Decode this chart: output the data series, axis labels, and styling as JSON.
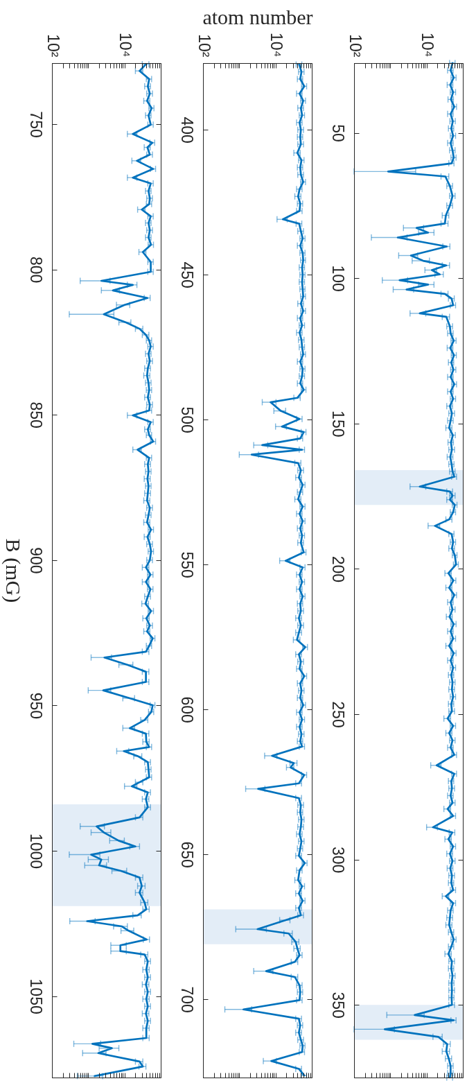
{
  "chart_data": [
    {
      "type": "line",
      "ylabel": "B (mG)",
      "series": [
        {
          "color": "#0072bd",
          "x": [
            39000,
            26000,
            48000,
            44000,
            50000,
            42000,
            56000,
            46000,
            53000,
            17000,
            59000,
            43000,
            50000,
            22000,
            62000,
            17000,
            53000,
            46000,
            50000,
            48000,
            30000,
            53000,
            46000,
            50000,
            46000,
            54000,
            32000,
            53000,
            53000,
            2300,
            17000,
            4800,
            43000,
            10000,
            2700,
            11000,
            26000,
            39000,
            48000,
            53000,
            46000,
            50000,
            44000,
            42000,
            46000,
            48000,
            44000,
            50000,
            48000,
            17000,
            53000,
            44000,
            48000,
            62000,
            23000,
            48000,
            44000,
            46000,
            43000,
            46000,
            44000,
            42000,
            50000,
            46000,
            42000,
            54000,
            43000,
            50000,
            54000,
            50000,
            39000,
            52000,
            39000,
            52000,
            44000,
            38000,
            54000,
            40000,
            50000,
            42000,
            60000,
            48000,
            39000,
            2800,
            12000,
            39000,
            39000,
            2600,
            14000,
            60000,
            55000,
            36000,
            14000,
            39000,
            40000,
            48000,
            9600,
            24000,
            44000,
            46000,
            48000,
            26000,
            16000,
            44000,
            39000,
            44000,
            26000,
            1700,
            2700,
            6900,
            20000,
            1200,
            2300,
            2000,
            8000,
            26000,
            30000,
            26000,
            36000,
            40000,
            23000,
            930,
            8500,
            13000,
            41000,
            7700,
            7700,
            36000,
            44000,
            40000,
            44000,
            39000,
            44000,
            40000,
            44000,
            39000,
            44000,
            40000,
            40000,
            1300,
            4500,
            1900,
            26000,
            32000,
            1500
          ],
          "values": [
            729.4,
            731.7,
            734.5,
            737,
            739.5,
            742,
            744.5,
            747,
            750.2,
            753.4,
            756.4,
            758,
            760.5,
            762.6,
            765.4,
            768.4,
            770.4,
            773,
            775.5,
            777.5,
            779.4,
            781.7,
            784,
            786.5,
            789,
            791.5,
            794,
            797.4,
            800.8,
            803.9,
            805.3,
            807.2,
            809.8,
            812.2,
            815.4,
            818.2,
            820.4,
            822.5,
            824.4,
            826.5,
            829,
            831.5,
            834,
            836.5,
            839,
            841.5,
            844,
            846.5,
            848.5,
            850.2,
            852.5,
            855,
            857,
            859.2,
            862,
            864.8,
            867,
            869.5,
            872,
            874.5,
            877,
            879.5,
            882,
            884.5,
            887,
            889.5,
            892,
            894.5,
            897,
            900,
            902.5,
            905,
            907.5,
            910,
            912.5,
            915,
            917.5,
            920,
            922.5,
            924.5,
            926.9,
            929.5,
            931.5,
            933.5,
            936,
            938.4,
            941.9,
            944.8,
            947.5,
            949.9,
            952.2,
            955,
            957.8,
            959.7,
            962.5,
            964.3,
            965.7,
            967.5,
            969.5,
            972,
            974.7,
            976.4,
            977.8,
            979.9,
            982.2,
            985,
            988.5,
            991.6,
            993.7,
            996.5,
            998.5,
            1001.3,
            1003,
            1005,
            1006.9,
            1009.2,
            1012.1,
            1014.4,
            1017.8,
            1020.1,
            1022.2,
            1024.2,
            1026,
            1027.5,
            1030.5,
            1032.5,
            1034.5,
            1035.7,
            1038,
            1040.9,
            1043.5,
            1046,
            1048.5,
            1051,
            1053.5,
            1056,
            1058.5,
            1061,
            1064.4,
            1066.4,
            1067.9,
            1069.6,
            1072.5,
            1074.2,
            1077.5
          ],
          "xerrors": [
            8000,
            6000,
            8000,
            8000,
            9000,
            8000,
            9000,
            8000,
            9000,
            5000,
            9000,
            8000,
            9000,
            6000,
            10000,
            5000,
            9000,
            8000,
            9000,
            8000,
            7000,
            9000,
            8000,
            9000,
            8000,
            9000,
            7000,
            9000,
            9000,
            1700,
            5000,
            2500,
            8000,
            4000,
            2400,
            4000,
            6000,
            8000,
            8000,
            9000,
            8000,
            9000,
            8000,
            8000,
            8000,
            8000,
            8000,
            9000,
            8000,
            5000,
            9000,
            8000,
            8000,
            10000,
            6000,
            8000,
            8000,
            8000,
            8000,
            8000,
            8000,
            8000,
            9000,
            8000,
            8000,
            9000,
            8000,
            9000,
            9000,
            9000,
            8000,
            9000,
            8000,
            9000,
            8000,
            8000,
            9000,
            8000,
            9000,
            8000,
            9000,
            8000,
            8000,
            1600,
            5000,
            8000,
            8000,
            1600,
            5000,
            9000,
            9000,
            8000,
            5000,
            8000,
            8000,
            8000,
            3500,
            6000,
            8000,
            8000,
            8000,
            6000,
            6000,
            8000,
            8000,
            8000,
            6000,
            1100,
            1500,
            3000,
            6000,
            900,
            1300,
            1200,
            3500,
            6000,
            7000,
            6000,
            8000,
            8000,
            6000,
            620,
            3500,
            5000,
            8000,
            3500,
            3500,
            8000,
            8000,
            8000,
            8000,
            8000,
            8000,
            8000,
            8000,
            8000,
            8000,
            8000,
            8000,
            900,
            2500,
            1200,
            6000,
            7000,
            1000
          ]
        }
      ],
      "xlim": [
        100,
        100000
      ],
      "xticks": [
        {
          "value": 100,
          "label": "10²"
        },
        {
          "value": 200,
          "label": null
        },
        {
          "value": 300,
          "label": null
        },
        {
          "value": 400,
          "label": null
        },
        {
          "value": 500,
          "label": null
        },
        {
          "value": 600,
          "label": null
        },
        {
          "value": 700,
          "label": null
        },
        {
          "value": 800,
          "label": null
        },
        {
          "value": 900,
          "label": null
        },
        {
          "value": 1000,
          "label": null
        },
        {
          "value": 2000,
          "label": null
        },
        {
          "value": 3000,
          "label": null
        },
        {
          "value": 4000,
          "label": null
        },
        {
          "value": 5000,
          "label": null
        },
        {
          "value": 6000,
          "label": null
        },
        {
          "value": 7000,
          "label": null
        },
        {
          "value": 8000,
          "label": null
        },
        {
          "value": 9000,
          "label": null
        },
        {
          "value": 10000,
          "label": "10⁴"
        },
        {
          "value": 20000,
          "label": null
        },
        {
          "value": 30000,
          "label": null
        },
        {
          "value": 40000,
          "label": null
        },
        {
          "value": 50000,
          "label": null
        },
        {
          "value": 60000,
          "label": null
        },
        {
          "value": 70000,
          "label": null
        },
        {
          "value": 80000,
          "label": null
        },
        {
          "value": 90000,
          "label": null
        }
      ],
      "ylim": [
        1078,
        729
      ],
      "yticks": [
        750,
        800,
        850,
        900,
        950,
        1000,
        1050
      ],
      "log": "x",
      "bands": [
        {
          "axis": "y",
          "from": 984,
          "to": 1019,
          "color": "#e3edf7"
        }
      ]
    },
    {
      "type": "line",
      "xlabel": "atom number",
      "series": [
        {
          "color": "#0072bd",
          "x": [
            45000,
            52000,
            48000,
            62000,
            46000,
            58000,
            50000,
            54000,
            46000,
            50000,
            48000,
            50000,
            40000,
            52000,
            48000,
            50000,
            58000,
            46000,
            42000,
            48000,
            46000,
            16000,
            45000,
            50000,
            56000,
            48000,
            56000,
            58000,
            54000,
            56000,
            54000,
            56000,
            58000,
            50000,
            58000,
            48000,
            54000,
            46000,
            52000,
            54000,
            58000,
            48000,
            56000,
            54000,
            48000,
            60000,
            40000,
            7300,
            14000,
            46000,
            15000,
            60000,
            48000,
            4300,
            54000,
            2200,
            42000,
            50000,
            44000,
            56000,
            48000,
            42000,
            56000,
            46000,
            56000,
            48000,
            54000,
            50000,
            60000,
            19000,
            56000,
            46000,
            54000,
            46000,
            56000,
            48000,
            50000,
            44000,
            50000,
            44000,
            39000,
            66000,
            44000,
            50000,
            46000,
            62000,
            48000,
            52000,
            48000,
            58000,
            46000,
            54000,
            46000,
            52000,
            48000,
            54000,
            8000,
            32000,
            26000,
            62000,
            44000,
            3300,
            44000,
            50000,
            48000,
            52000,
            50000,
            46000,
            52000,
            48000,
            44000,
            64000,
            46000,
            42000,
            54000,
            44000,
            56000,
            44000,
            50000,
            19000,
            3200,
            23000,
            36000,
            40000,
            46000,
            34000,
            5500,
            34000,
            46000,
            48000,
            46000,
            1300,
            44000,
            48000,
            44000,
            50000,
            56000,
            54000,
            7600,
            44000,
            62000
          ],
          "values": [
            377.5,
            380,
            382.5,
            385,
            387.5,
            390,
            392.5,
            395,
            397.5,
            400,
            402.5,
            405,
            408,
            410.5,
            413,
            415.5,
            418,
            420.5,
            423,
            425.5,
            428,
            430.9,
            432.4,
            435,
            437.5,
            440,
            442.5,
            445,
            447.5,
            450,
            452.5,
            455,
            457.5,
            460,
            462.5,
            465,
            467.5,
            470,
            472.5,
            475,
            477.5,
            480,
            482.5,
            485,
            487.5,
            489.7,
            492.5,
            494,
            497,
            499.8,
            502.4,
            504.3,
            506.5,
            508.8,
            510.4,
            512.1,
            515,
            517.5,
            520,
            522.5,
            525,
            527.5,
            530,
            532.5,
            535,
            537.5,
            540,
            542.5,
            545.8,
            548.7,
            551,
            553.5,
            556,
            558.5,
            561,
            563.5,
            566,
            568.5,
            571,
            573.5,
            576,
            578.5,
            581,
            583.5,
            586,
            588.5,
            591,
            593.5,
            596,
            598.5,
            601,
            603.5,
            606,
            608.5,
            611,
            612.8,
            616,
            618.5,
            620,
            622.6,
            625.5,
            627.4,
            630.6,
            633,
            635.5,
            638,
            640.5,
            643,
            645.5,
            648,
            650.5,
            653,
            655.5,
            658.9,
            661,
            663.5,
            666,
            668.5,
            671,
            672.7,
            675.8,
            677.3,
            680.2,
            682.5,
            684.8,
            687.1,
            690.3,
            692.3,
            695.2,
            697.5,
            700.3,
            703.5,
            706.7,
            709,
            711.5,
            714,
            716,
            718.2,
            721.3,
            724,
            726.3
          ],
          "xerrors": [
            8000,
            9000,
            8000,
            10000,
            8000,
            9000,
            9000,
            9000,
            8000,
            9000,
            8000,
            9000,
            8000,
            9000,
            8000,
            9000,
            9000,
            8000,
            8000,
            8000,
            8000,
            5000,
            8000,
            9000,
            9000,
            8000,
            9000,
            9000,
            9000,
            9000,
            9000,
            9000,
            9000,
            9000,
            9000,
            8000,
            9000,
            8000,
            9000,
            9000,
            9000,
            8000,
            9000,
            9000,
            8000,
            9000,
            8000,
            3000,
            5000,
            8000,
            5000,
            9000,
            8000,
            1800,
            9000,
            1200,
            8000,
            9000,
            8000,
            9000,
            8000,
            8000,
            9000,
            8000,
            9000,
            8000,
            9000,
            9000,
            9000,
            6000,
            9000,
            8000,
            9000,
            8000,
            9000,
            8000,
            9000,
            8000,
            9000,
            8000,
            8000,
            10000,
            8000,
            9000,
            8000,
            10000,
            8000,
            9000,
            8000,
            9000,
            8000,
            9000,
            8000,
            9000,
            8000,
            9000,
            3000,
            7000,
            6000,
            10000,
            8000,
            1800,
            8000,
            9000,
            8000,
            9000,
            9000,
            8000,
            9000,
            8000,
            8000,
            10000,
            8000,
            8000,
            9000,
            8000,
            9000,
            8000,
            9000,
            6000,
            2400,
            6000,
            8000,
            8000,
            8000,
            7000,
            3000,
            7000,
            8000,
            8000,
            8000,
            900,
            8000,
            8000,
            8000,
            9000,
            9000,
            9000,
            3000,
            8000,
            10000
          ]
        }
      ],
      "xlim": [
        100,
        100000
      ],
      "xticks": [
        {
          "value": 100,
          "label": "10²"
        },
        {
          "value": 200,
          "label": null
        },
        {
          "value": 300,
          "label": null
        },
        {
          "value": 400,
          "label": null
        },
        {
          "value": 500,
          "label": null
        },
        {
          "value": 600,
          "label": null
        },
        {
          "value": 700,
          "label": null
        },
        {
          "value": 800,
          "label": null
        },
        {
          "value": 900,
          "label": null
        },
        {
          "value": 1000,
          "label": null
        },
        {
          "value": 2000,
          "label": null
        },
        {
          "value": 3000,
          "label": null
        },
        {
          "value": 4000,
          "label": null
        },
        {
          "value": 5000,
          "label": null
        },
        {
          "value": 6000,
          "label": null
        },
        {
          "value": 7000,
          "label": null
        },
        {
          "value": 8000,
          "label": null
        },
        {
          "value": 9000,
          "label": null
        },
        {
          "value": 10000,
          "label": "10⁴"
        },
        {
          "value": 20000,
          "label": null
        },
        {
          "value": 30000,
          "label": null
        },
        {
          "value": 40000,
          "label": null
        },
        {
          "value": 50000,
          "label": null
        },
        {
          "value": 60000,
          "label": null
        },
        {
          "value": 70000,
          "label": null
        },
        {
          "value": 80000,
          "label": null
        },
        {
          "value": 90000,
          "label": null
        }
      ],
      "ylim": [
        727,
        377
      ],
      "yticks": [
        400,
        450,
        500,
        550,
        600,
        650,
        700
      ],
      "log": "x",
      "bands": [
        {
          "axis": "y",
          "from": 669,
          "to": 681,
          "color": "#e3edf7"
        }
      ]
    },
    {
      "type": "line",
      "series": [
        {
          "color": "#0072bd",
          "x": [
            52000,
            46000,
            56000,
            45000,
            54000,
            47000,
            58000,
            46000,
            53000,
            48000,
            54000,
            46000,
            52000,
            56000,
            49000,
            870,
            33000,
            44000,
            52000,
            44000,
            34000,
            32000,
            5300,
            11000,
            1600,
            36000,
            3700,
            8000,
            35000,
            14000,
            23000,
            1800,
            11000,
            2800,
            32000,
            49000,
            54000,
            6500,
            35000,
            44000,
            46000,
            56000,
            45000,
            57000,
            48000,
            55000,
            46000,
            58000,
            46000,
            54000,
            44000,
            50000,
            46000,
            42000,
            53000,
            47000,
            50000,
            45000,
            49000,
            52000,
            58000,
            6500,
            44000,
            52000,
            44000,
            60000,
            54000,
            42000,
            17000,
            49000,
            54000,
            50000,
            60000,
            65000,
            40000,
            55000,
            42000,
            58000,
            46000,
            52000,
            43000,
            56000,
            46000,
            54000,
            42000,
            56000,
            46000,
            54000,
            48000,
            52000,
            50000,
            54000,
            48000,
            50000,
            38000,
            54000,
            42000,
            52000,
            46000,
            58000,
            19000,
            58000,
            48000,
            50000,
            46000,
            52000,
            38000,
            54000,
            15000,
            51000,
            40000,
            54000,
            44000,
            52000,
            45000,
            50000,
            48000,
            54000,
            34000,
            54000,
            46000,
            44000,
            42000,
            48000,
            56000,
            48000,
            40000,
            50000,
            48000,
            52000,
            49000,
            50000,
            49000,
            50000,
            4700,
            56000,
            700,
            21000,
            37000,
            35000,
            41000,
            46000,
            46000,
            44000
          ],
          "values": [
            26,
            28.5,
            31,
            33.5,
            36,
            38.5,
            41,
            43.5,
            46,
            48.5,
            51,
            53.5,
            56,
            58.5,
            60.5,
            63.3,
            65,
            68.3,
            71.7,
            75,
            78.4,
            81.2,
            82.7,
            84.3,
            86,
            89.1,
            92.2,
            94,
            95.6,
            97.2,
            98.7,
            100.7,
            102.2,
            103.9,
            105.4,
            107,
            109.3,
            112.1,
            113.3,
            116.6,
            119,
            121.5,
            124,
            126.5,
            129,
            131.5,
            134,
            136.5,
            139,
            141.5,
            144,
            146.5,
            149,
            151.5,
            154,
            156.5,
            159,
            161.5,
            164,
            166.5,
            168.3,
            171.7,
            173.4,
            174.8,
            176.2,
            178,
            180.5,
            183,
            185.2,
            188,
            190.8,
            193,
            195.3,
            198.5,
            201.5,
            204,
            206.5,
            209,
            211.5,
            214,
            216.5,
            219,
            221.5,
            224,
            226.5,
            229,
            231.5,
            234,
            236.5,
            239,
            241.5,
            244,
            246.5,
            249,
            251.5,
            254,
            256.5,
            259,
            261.5,
            264,
            267.6,
            270.5,
            273,
            275.5,
            278,
            280.5,
            282.6,
            285,
            288.9,
            290.7,
            293,
            295.5,
            298,
            300.5,
            303,
            305.5,
            308,
            310.5,
            312.6,
            315,
            317.5,
            320,
            322.5,
            325,
            327.5,
            330,
            332.5,
            335,
            337.5,
            340,
            342.5,
            345,
            347.5,
            350,
            353.5,
            355.3,
            358.4,
            361,
            363.5,
            366,
            368.5,
            371,
            373.5,
            375
          ],
          "xerrors": [
            9000,
            8000,
            9000,
            8000,
            9000,
            8000,
            9000,
            8000,
            9000,
            8000,
            9000,
            8000,
            9000,
            9000,
            8000,
            [
              100,
              5000
            ],
            8000,
            8000,
            9000,
            8000,
            7000,
            7000,
            3000,
            5000,
            1300,
            8000,
            2000,
            4000,
            8000,
            5000,
            6000,
            1200,
            5000,
            1600,
            7000,
            9000,
            9000,
            3000,
            8000,
            8000,
            8000,
            9000,
            8000,
            9000,
            8000,
            9000,
            8000,
            9000,
            8000,
            9000,
            8000,
            9000,
            8000,
            8000,
            9000,
            8000,
            9000,
            8000,
            8000,
            9000,
            9000,
            3000,
            8000,
            9000,
            8000,
            9000,
            9000,
            8000,
            6000,
            8000,
            9000,
            9000,
            9000,
            10000,
            8000,
            9000,
            8000,
            9000,
            8000,
            9000,
            8000,
            9000,
            8000,
            9000,
            8000,
            9000,
            8000,
            9000,
            8000,
            9000,
            9000,
            9000,
            8000,
            9000,
            8000,
            9000,
            8000,
            9000,
            8000,
            9000,
            6000,
            9000,
            8000,
            9000,
            8000,
            9000,
            8000,
            9000,
            5000,
            9000,
            8000,
            9000,
            8000,
            9000,
            8000,
            9000,
            8000,
            9000,
            7000,
            9000,
            8000,
            8000,
            8000,
            8000,
            9000,
            8000,
            8000,
            9000,
            8000,
            9000,
            8000,
            9000,
            8000,
            9000,
            3900,
            9000,
            600,
            6000,
            8000,
            8000,
            8000,
            8000,
            8000,
            8000
          ]
        }
      ],
      "xlim": [
        100,
        100000
      ],
      "xticks": [
        {
          "value": 100,
          "label": "10²"
        },
        {
          "value": 200,
          "label": null
        },
        {
          "value": 300,
          "label": null
        },
        {
          "value": 400,
          "label": null
        },
        {
          "value": 500,
          "label": null
        },
        {
          "value": 600,
          "label": null
        },
        {
          "value": 700,
          "label": null
        },
        {
          "value": 800,
          "label": null
        },
        {
          "value": 900,
          "label": null
        },
        {
          "value": 1000,
          "label": null
        },
        {
          "value": 2000,
          "label": null
        },
        {
          "value": 3000,
          "label": null
        },
        {
          "value": 4000,
          "label": null
        },
        {
          "value": 5000,
          "label": null
        },
        {
          "value": 6000,
          "label": null
        },
        {
          "value": 7000,
          "label": null
        },
        {
          "value": 8000,
          "label": null
        },
        {
          "value": 9000,
          "label": null
        },
        {
          "value": 10000,
          "label": "10⁴"
        },
        {
          "value": 20000,
          "label": null
        },
        {
          "value": 30000,
          "label": null
        },
        {
          "value": 40000,
          "label": null
        },
        {
          "value": 50000,
          "label": null
        },
        {
          "value": 60000,
          "label": null
        },
        {
          "value": 70000,
          "label": null
        },
        {
          "value": 80000,
          "label": null
        },
        {
          "value": 90000,
          "label": null
        }
      ],
      "ylim": [
        375,
        26
      ],
      "yticks": [
        50,
        100,
        150,
        200,
        250,
        300,
        350
      ],
      "log": "x",
      "bands": [
        {
          "axis": "y",
          "from": 166,
          "to": 178,
          "color": "#e3edf7"
        },
        {
          "axis": "y",
          "from": 350,
          "to": 362,
          "color": "#e3edf7"
        }
      ]
    }
  ]
}
